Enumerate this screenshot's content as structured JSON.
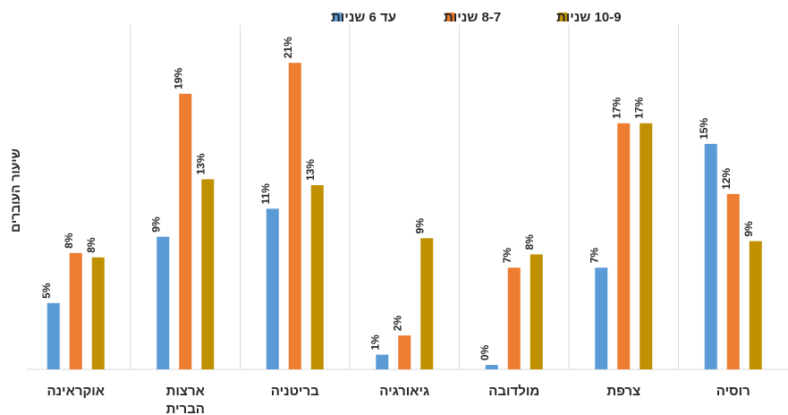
{
  "chart_data": {
    "type": "bar",
    "title": "",
    "ylabel": "שיעור העוברים",
    "xlabel": "",
    "ylim": [
      0,
      23
    ],
    "grid": false,
    "legend_position": "top",
    "categories": [
      "רוסיה",
      "צרפת",
      "מולדובה",
      "גיאורגיה",
      "בריטניה",
      "ארצות הברית",
      "אוקראינה"
    ],
    "category_lines": [
      [
        "רוסיה"
      ],
      [
        "צרפת"
      ],
      [
        "מולדובה"
      ],
      [
        "גיאורגיה"
      ],
      [
        "בריטניה"
      ],
      [
        "ארצות",
        "הברית"
      ],
      [
        "אוקראינה"
      ]
    ],
    "series": [
      {
        "name": "עד 6 שניות",
        "color": "#5b9bd5",
        "values": [
          15,
          7,
          0,
          1,
          11,
          9,
          5
        ],
        "labels": [
          "15%",
          "7%",
          "0%",
          "1%",
          "11%",
          "9%",
          "5%"
        ]
      },
      {
        "name": "8-7 שניות",
        "color": "#ed7d31",
        "values": [
          12,
          17,
          7,
          2,
          21,
          19,
          8
        ],
        "labels": [
          "12%",
          "17%",
          "7%",
          "2%",
          "21%",
          "19%",
          "8%"
        ]
      },
      {
        "name": "10-9 שניות",
        "color": "#bf9000",
        "values": [
          9,
          17,
          8,
          9,
          13,
          13,
          8
        ],
        "labels": [
          "9%",
          "17%",
          "8%",
          "9%",
          "13%",
          "13%",
          "8%"
        ]
      }
    ],
    "bar_values_exact": [
      [
        15.3,
        6.9,
        0.3,
        1.0,
        10.9,
        9.0,
        4.5
      ],
      [
        11.9,
        16.7,
        6.9,
        2.3,
        20.8,
        18.7,
        7.9
      ],
      [
        8.7,
        16.7,
        7.8,
        8.9,
        12.5,
        12.9,
        7.6
      ]
    ]
  }
}
